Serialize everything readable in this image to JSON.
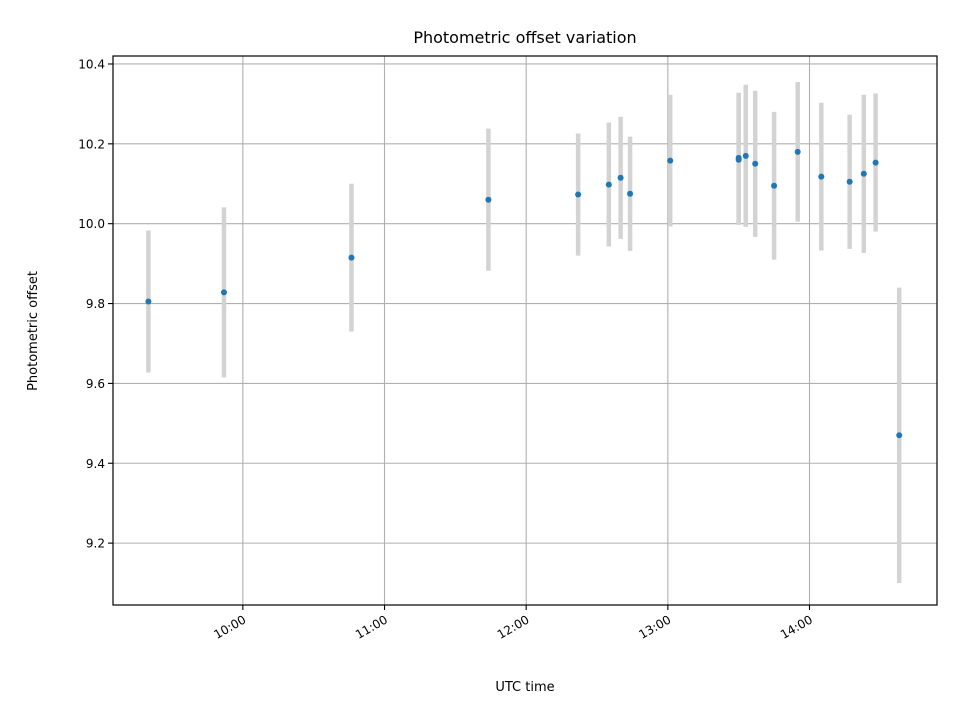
{
  "chart_data": {
    "type": "scatter",
    "title": "Photometric offset variation",
    "xlabel": "UTC time",
    "ylabel": "Photometric offset",
    "xlim": [
      "09:05",
      "14:54"
    ],
    "ylim": [
      9.045,
      10.42
    ],
    "grid": true,
    "x_ticks": [
      "10:00",
      "11:00",
      "12:00",
      "13:00",
      "14:00"
    ],
    "y_ticks": [
      9.2,
      9.4,
      9.6,
      9.8,
      10.0,
      10.2,
      10.4
    ],
    "y_tick_labels": [
      "9.2",
      "9.4",
      "9.6",
      "9.8",
      "10.0",
      "10.2",
      "10.4"
    ],
    "series": [
      {
        "points": [
          {
            "x": "09:20",
            "y": 9.805,
            "err": 0.178
          },
          {
            "x": "09:52",
            "y": 9.828,
            "err": 0.213
          },
          {
            "x": "10:46",
            "y": 9.915,
            "err": 0.185
          },
          {
            "x": "11:44",
            "y": 10.06,
            "err": 0.178
          },
          {
            "x": "12:22",
            "y": 10.073,
            "err": 0.153
          },
          {
            "x": "12:35",
            "y": 10.098,
            "err": 0.155
          },
          {
            "x": "12:40",
            "y": 10.115,
            "err": 0.153
          },
          {
            "x": "12:44",
            "y": 10.075,
            "err": 0.143
          },
          {
            "x": "13:01",
            "y": 10.158,
            "err": 0.165
          },
          {
            "x": "13:30",
            "y": 10.165,
            "err": 0.163
          },
          {
            "x": "13:30",
            "y": 10.16,
            "err": 0.163
          },
          {
            "x": "13:33",
            "y": 10.17,
            "err": 0.178
          },
          {
            "x": "13:37",
            "y": 10.15,
            "err": 0.183
          },
          {
            "x": "13:45",
            "y": 10.095,
            "err": 0.185
          },
          {
            "x": "13:55",
            "y": 10.18,
            "err": 0.175
          },
          {
            "x": "14:05",
            "y": 10.118,
            "err": 0.185
          },
          {
            "x": "14:17",
            "y": 10.105,
            "err": 0.168
          },
          {
            "x": "14:23",
            "y": 10.125,
            "err": 0.198
          },
          {
            "x": "14:28",
            "y": 10.153,
            "err": 0.173
          },
          {
            "x": "14:38",
            "y": 9.47,
            "err": 0.37
          }
        ]
      }
    ],
    "colors": {
      "point": "#1f77b4",
      "errorbar": "#d3d3d3",
      "grid": "#b0b0b0",
      "axis": "#000000"
    }
  }
}
